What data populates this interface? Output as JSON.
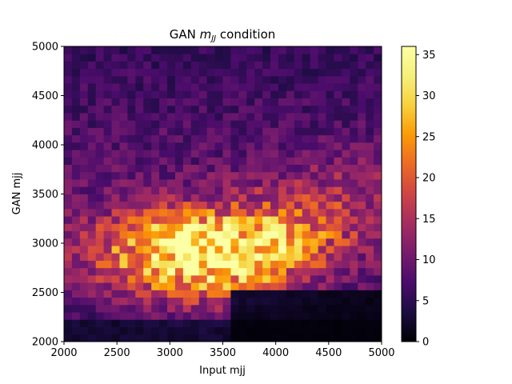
{
  "chart_data": {
    "type": "heatmap",
    "title_main": "GAN ",
    "title_math": "m",
    "title_math_sub": "JJ",
    "title_rest": " condition",
    "xlabel": "Input mjj",
    "ylabel": "GAN mjj",
    "xlim": [
      2000,
      5000
    ],
    "ylim": [
      2000,
      5000
    ],
    "x_ticks": [
      2000,
      2500,
      3000,
      3500,
      4000,
      4500,
      5000
    ],
    "y_ticks": [
      2000,
      2500,
      3000,
      3500,
      4000,
      4500,
      5000
    ],
    "x_tick_labels": [
      "2000",
      "2500",
      "3000",
      "3500",
      "4000",
      "4500",
      "5000"
    ],
    "y_tick_labels": [
      "2000",
      "2500",
      "3000",
      "3500",
      "4000",
      "4500",
      "5000"
    ],
    "colormap": "inferno",
    "colorbar_range": [
      0,
      36
    ],
    "colorbar_ticks": [
      0,
      5,
      10,
      15,
      20,
      25,
      30,
      35
    ],
    "colorbar_tick_labels": [
      "0",
      "5",
      "10",
      "15",
      "20",
      "25",
      "30",
      "35"
    ],
    "bins_x": 40,
    "bins_y": 40,
    "approx_peak": {
      "input_mjj": 3400,
      "gan_mjj": 2900,
      "count": 36
    },
    "grid": false
  }
}
